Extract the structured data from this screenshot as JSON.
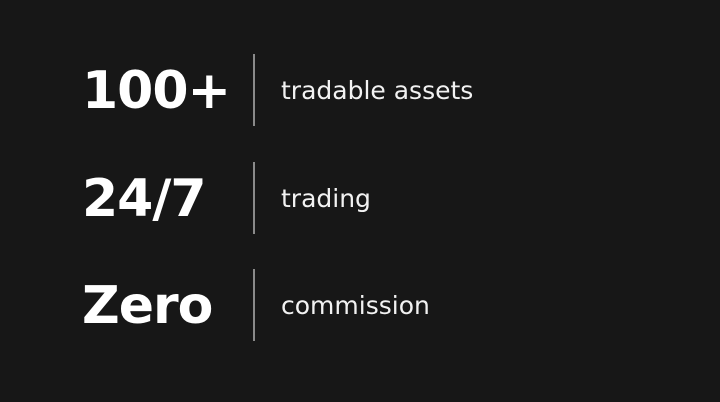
{
  "stats": [
    {
      "value": "100+",
      "label": "tradable assets"
    },
    {
      "value": "24/7",
      "label": "trading"
    },
    {
      "value": "Zero",
      "label": "commission"
    }
  ],
  "colors": {
    "background": "#171717",
    "text": "#ffffff",
    "divider": "#8a8a8a"
  }
}
